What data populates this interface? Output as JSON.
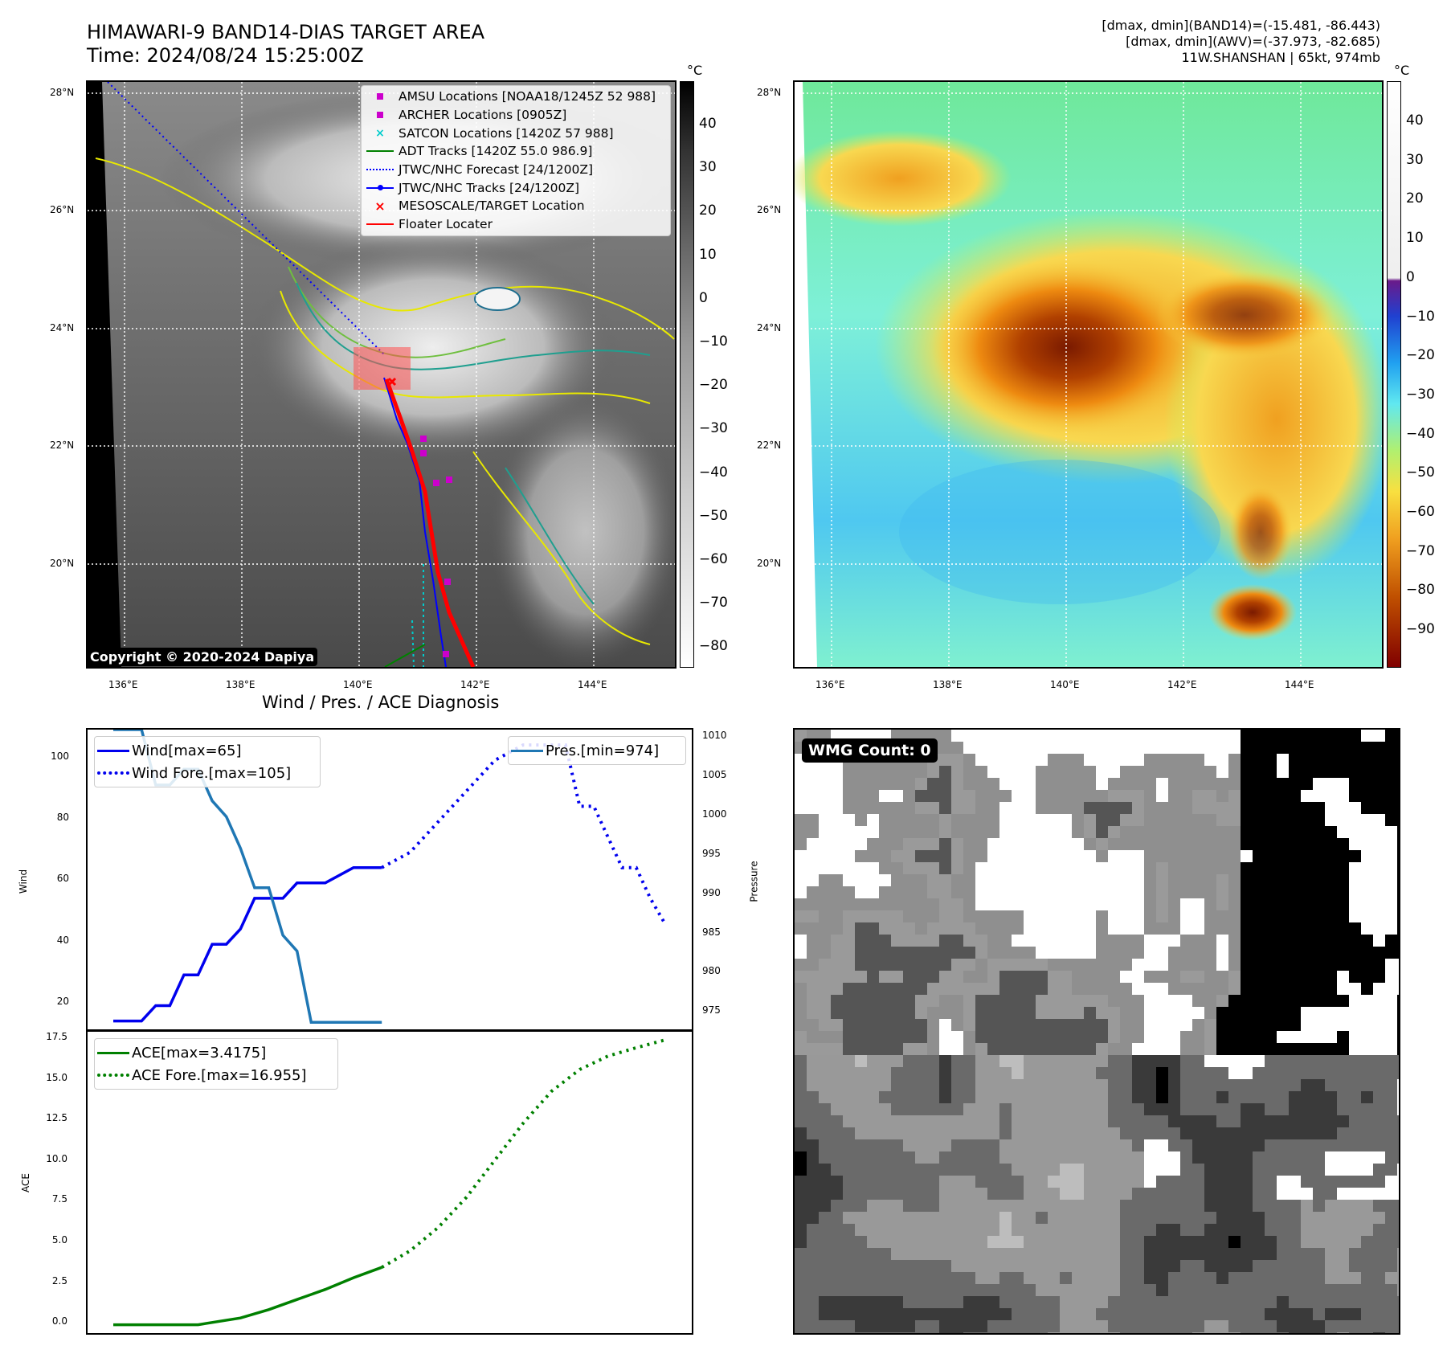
{
  "header": {
    "title_line1": "HIMAWARI-9 BAND14-DIAS TARGET AREA",
    "title_line2": "Time: 2024/08/24 15:25:00Z",
    "right_line1": "[dmax, dmin](BAND14)=(-15.481, -86.443)",
    "right_line2": "[dmax, dmin](AWV)=(-37.973, -82.685)",
    "right_line3": "11W.SHANSHAN | 65kt, 974mb"
  },
  "map_axes": {
    "lat_ticks": [
      "28°N",
      "26°N",
      "24°N",
      "22°N",
      "20°N"
    ],
    "lon_ticks": [
      "136°E",
      "138°E",
      "140°E",
      "142°E",
      "144°E"
    ]
  },
  "colorbar_gray": {
    "unit": "°C",
    "ticks": [
      "40",
      "30",
      "20",
      "10",
      "0",
      "−10",
      "−20",
      "−30",
      "−40",
      "−50",
      "−60",
      "−70",
      "−80"
    ]
  },
  "colorbar_color": {
    "unit": "°C",
    "ticks": [
      "40",
      "30",
      "20",
      "10",
      "0",
      "−10",
      "−20",
      "−30",
      "−40",
      "−50",
      "−60",
      "−70",
      "−80",
      "−90"
    ]
  },
  "legend_map": [
    {
      "label": "AMSU Locations [NOAA18/1245Z 52 988]",
      "symbol": "square",
      "color": "#cc00cc"
    },
    {
      "label": "ARCHER Locations [0905Z]",
      "symbol": "square",
      "color": "#cc00cc"
    },
    {
      "label": "SATCON Locations [1420Z 57 988]",
      "symbol": "x",
      "color": "#00cccc"
    },
    {
      "label": "ADT Tracks [1420Z 55.0 986.9]",
      "symbol": "line",
      "color": "#008000"
    },
    {
      "label": "JTWC/NHC Forecast [24/1200Z]",
      "symbol": "dotted",
      "color": "#0000ff"
    },
    {
      "label": "JTWC/NHC Tracks [24/1200Z]",
      "symbol": "line-dot",
      "color": "#0000ff"
    },
    {
      "label": "MESOSCALE/TARGET Location",
      "symbol": "x",
      "color": "#ff0000"
    },
    {
      "label": "Floater Locater",
      "symbol": "line",
      "color": "#ff0000"
    }
  ],
  "copyright": "Copyright © 2020-2024 Dapiya",
  "wmg_label": "WMG Count: 0",
  "diagnosis_title": "Wind / Pres. / ACE Diagnosis",
  "wind_axis": {
    "label": "Wind",
    "ticks": [
      "100",
      "80",
      "60",
      "40",
      "20"
    ]
  },
  "pressure_axis": {
    "label": "Pressure",
    "ticks": [
      "1010",
      "1005",
      "1000",
      "995",
      "990",
      "985",
      "980",
      "975"
    ]
  },
  "ace_axis": {
    "label": "ACE",
    "ticks": [
      "17.5",
      "15.0",
      "12.5",
      "10.0",
      "7.5",
      "5.0",
      "2.5",
      "0.0"
    ]
  },
  "legend_wind": [
    {
      "label": "Wind[max=65]",
      "style": "solid",
      "color": "#0000ee"
    },
    {
      "label": "Wind Fore.[max=105]",
      "style": "dotted",
      "color": "#0000ee"
    }
  ],
  "legend_pres": [
    {
      "label": "Pres.[min=974]",
      "style": "solid",
      "color": "#1f77b4"
    }
  ],
  "legend_ace": [
    {
      "label": "ACE[max=3.4175]",
      "style": "solid",
      "color": "#008000"
    },
    {
      "label": "ACE Fore.[max=16.955]",
      "style": "dotted",
      "color": "#008000"
    }
  ],
  "chart_data": [
    {
      "type": "line",
      "title": "Wind / Pres. / ACE Diagnosis",
      "ylabel": "Wind",
      "ylim": [
        12,
        110
      ],
      "x": [
        0,
        1,
        2,
        3,
        4,
        5,
        6,
        7,
        8,
        9,
        10,
        11,
        12,
        13,
        14,
        15,
        16,
        17,
        18,
        19,
        20,
        21,
        22,
        23,
        24,
        25,
        26,
        27,
        28,
        29,
        30,
        31,
        32,
        33,
        34,
        35,
        36,
        37,
        38,
        39
      ],
      "series": [
        {
          "name": "Wind[max=65]",
          "x": [
            0,
            2,
            3,
            4,
            5,
            6,
            7,
            8,
            9,
            10,
            11,
            12,
            13,
            15,
            17,
            19
          ],
          "values": [
            15,
            15,
            20,
            20,
            30,
            30,
            40,
            40,
            45,
            55,
            55,
            55,
            60,
            60,
            65,
            65
          ]
        },
        {
          "name": "Wind Fore.[max=105]",
          "x": [
            19,
            21,
            23,
            25,
            27,
            29,
            31,
            32,
            33,
            34,
            35,
            36,
            37,
            38,
            39
          ],
          "values": [
            65,
            70,
            80,
            90,
            100,
            105,
            105,
            105,
            85,
            85,
            75,
            65,
            65,
            55,
            47
          ]
        }
      ]
    },
    {
      "type": "line",
      "ylabel": "Pressure",
      "ylim": [
        973,
        1011
      ],
      "series": [
        {
          "name": "Pres.[min=974]",
          "x": [
            0,
            2,
            3,
            4,
            5,
            6,
            7,
            8,
            9,
            10,
            11,
            12,
            13,
            14,
            15,
            16,
            17,
            19
          ],
          "values": [
            1011,
            1011,
            1004,
            1004,
            1006,
            1006,
            1002,
            1000,
            996,
            991,
            991,
            985,
            983,
            974,
            974,
            974,
            974,
            974
          ]
        }
      ]
    },
    {
      "type": "line",
      "ylabel": "ACE",
      "ylim": [
        -0.5,
        17.5
      ],
      "series": [
        {
          "name": "ACE[max=3.4175]",
          "x": [
            0,
            6,
            9,
            11,
            13,
            15,
            17,
            19
          ],
          "values": [
            0,
            0,
            0.4,
            0.9,
            1.5,
            2.1,
            2.8,
            3.4175
          ]
        },
        {
          "name": "ACE Fore.[max=16.955]",
          "x": [
            19,
            21,
            23,
            25,
            27,
            29,
            31,
            33,
            35,
            37,
            39
          ],
          "values": [
            3.4175,
            4.4,
            5.8,
            7.6,
            9.8,
            12.0,
            13.9,
            15.2,
            16.0,
            16.5,
            16.955
          ]
        }
      ]
    }
  ]
}
